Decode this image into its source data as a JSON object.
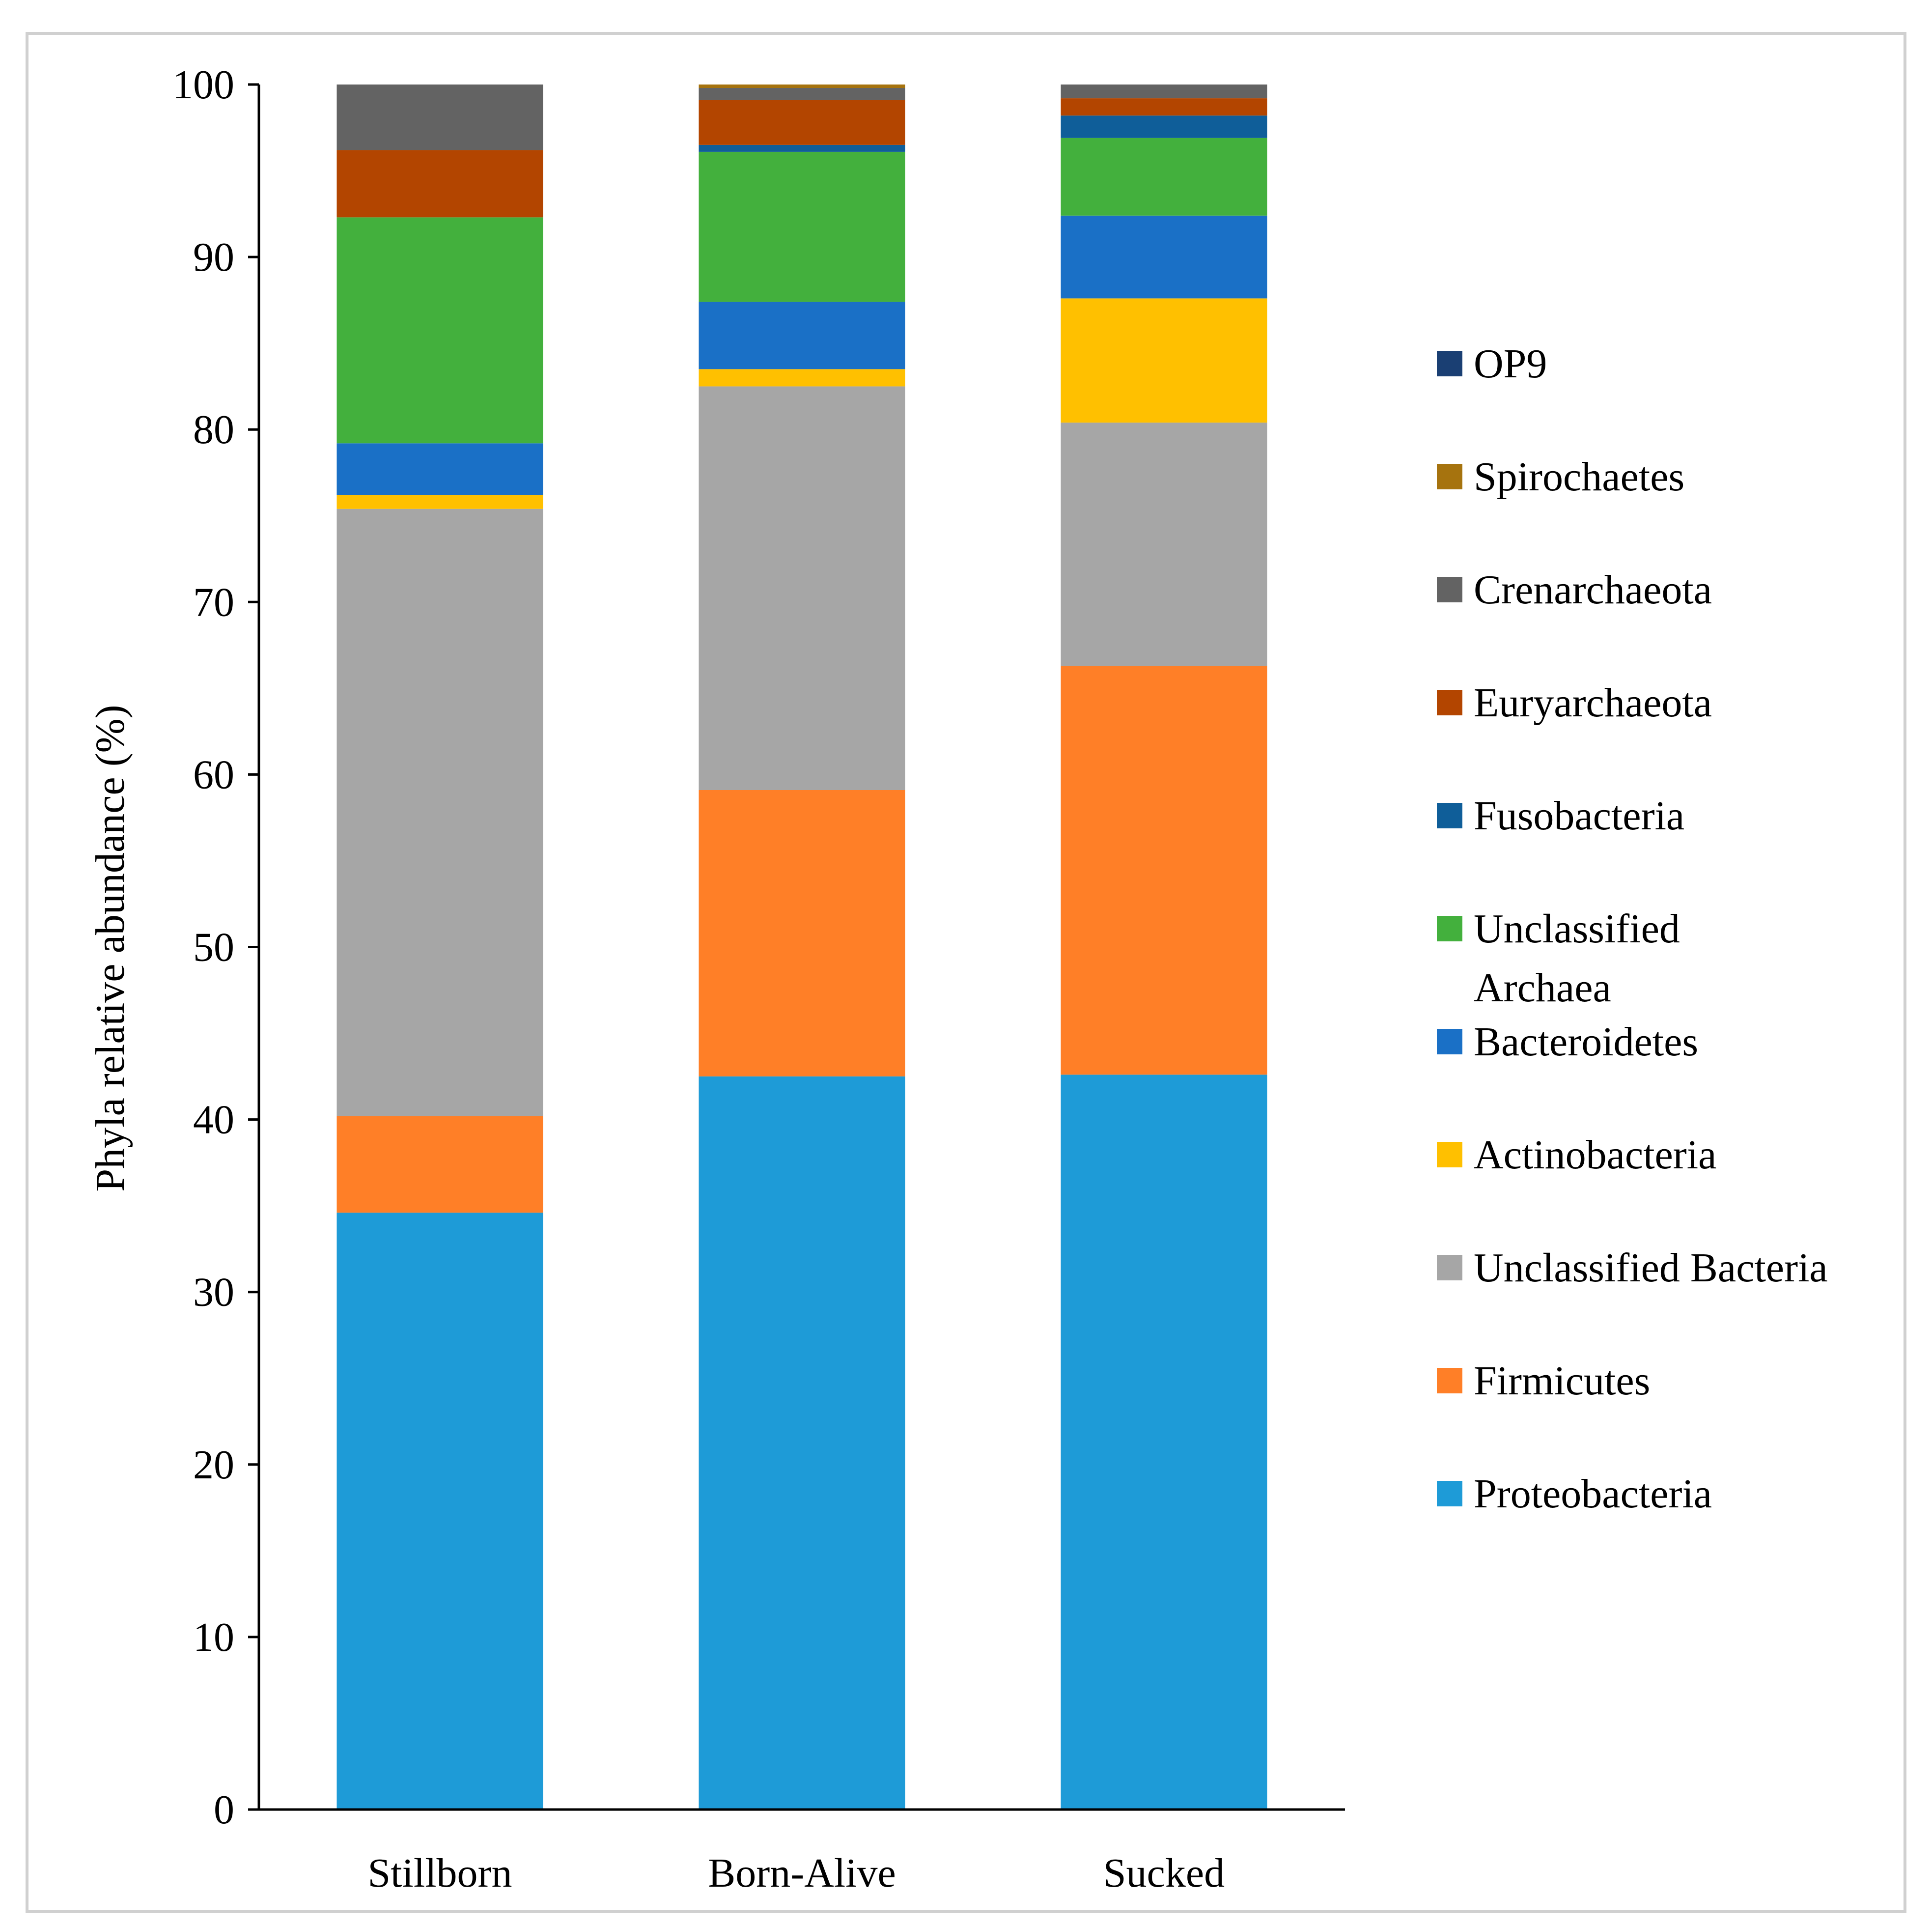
{
  "chart_data": {
    "type": "bar",
    "stacked": true,
    "title": "",
    "xlabel": "",
    "ylabel": "Phyla relative abundance (%)",
    "ylim": [
      0,
      100
    ],
    "yticks": [
      0,
      10,
      20,
      30,
      40,
      50,
      60,
      70,
      80,
      90,
      100
    ],
    "grid": false,
    "legend_position": "right",
    "categories": [
      "Stillborn",
      "Born-Alive",
      "Sucked"
    ],
    "series": [
      {
        "name": "Proteobacteria",
        "color": "#1E9BD7",
        "values": [
          34.6,
          42.5,
          42.6
        ]
      },
      {
        "name": "Firmicutes",
        "color": "#FF7F27",
        "values": [
          5.6,
          16.6,
          23.7
        ]
      },
      {
        "name": "Unclassified Bacteria",
        "color": "#A6A6A6",
        "values": [
          35.2,
          23.4,
          14.1
        ]
      },
      {
        "name": "Actinobacteria",
        "color": "#FFC000",
        "values": [
          0.8,
          1.0,
          7.2
        ]
      },
      {
        "name": "Bacteroidetes",
        "color": "#1A70C6",
        "values": [
          3.0,
          3.9,
          4.8
        ]
      },
      {
        "name": "Unclassified Archaea",
        "color": "#43B03D",
        "values": [
          13.1,
          8.7,
          4.5
        ]
      },
      {
        "name": "Fusobacteria",
        "color": "#0F5E99",
        "values": [
          0.0,
          0.4,
          1.3
        ]
      },
      {
        "name": "Euryarchaeota",
        "color": "#B34500",
        "values": [
          3.9,
          2.6,
          1.0
        ]
      },
      {
        "name": "Crenarchaeota",
        "color": "#636363",
        "values": [
          3.8,
          0.7,
          0.8
        ]
      },
      {
        "name": "Spirochaetes",
        "color": "#A6730E",
        "values": [
          0.0,
          0.2,
          0.0
        ]
      },
      {
        "name": "OP9",
        "color": "#1A3F73",
        "values": [
          0.0,
          0.0,
          0.0
        ]
      }
    ],
    "legend_order": [
      "OP9",
      "Spirochaetes",
      "Crenarchaeota",
      "Euryarchaeota",
      "Fusobacteria",
      "Unclassified Archaea",
      "Bacteroidetes",
      "Actinobacteria",
      "Unclassified Bacteria",
      "Firmicutes",
      "Proteobacteria"
    ]
  }
}
